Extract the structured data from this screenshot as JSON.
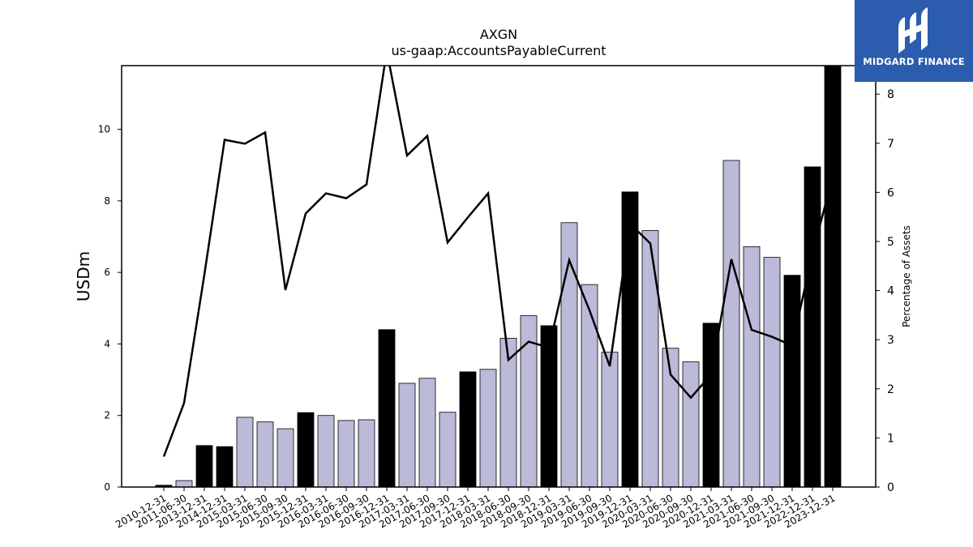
{
  "logo": {
    "name": "MIDGARD FINANCE",
    "icon": "midgard-logo-icon",
    "background": "#2b5cad"
  },
  "chart_data": {
    "type": "bar",
    "title": "AXGN",
    "subtitle": "us-gaap:AccountsPayableCurrent",
    "ylabel": "USDm",
    "y2label": "Percentage of Assets",
    "ylim": [
      0,
      11.78
    ],
    "y2lim": [
      0,
      8.58
    ],
    "yticks": [
      0,
      2,
      4,
      6,
      8,
      10
    ],
    "y2ticks": [
      0,
      1,
      2,
      3,
      4,
      5,
      6,
      7,
      8
    ],
    "grid": false,
    "legend": "none",
    "colors": {
      "annual": "#000000",
      "quarterly": "#bcbad9",
      "line": "#000000"
    },
    "categories": [
      "2010-12-31",
      "2011-06-30",
      "2013-12-31",
      "2014-12-31",
      "2015-03-31",
      "2015-06-30",
      "2015-09-30",
      "2015-12-31",
      "2016-03-31",
      "2016-06-30",
      "2016-09-30",
      "2016-12-31",
      "2017-03-31",
      "2017-06-30",
      "2017-09-30",
      "2017-12-31",
      "2018-03-31",
      "2018-06-30",
      "2018-09-30",
      "2018-12-31",
      "2019-03-31",
      "2019-06-30",
      "2019-09-30",
      "2019-12-31",
      "2020-03-31",
      "2020-06-30",
      "2020-09-30",
      "2020-12-31",
      "2021-03-31",
      "2021-06-30",
      "2021-09-30",
      "2021-12-31",
      "2022-12-31",
      "2023-12-31"
    ],
    "series": [
      {
        "kind": "bar",
        "values": [
          0.05,
          0.18,
          1.16,
          1.13,
          1.95,
          1.82,
          1.63,
          2.08,
          2.0,
          1.86,
          1.88,
          4.4,
          2.9,
          3.04,
          2.09,
          3.22,
          3.29,
          4.16,
          4.79,
          4.51,
          7.39,
          5.66,
          3.77,
          8.25,
          7.17,
          3.88,
          3.5,
          4.58,
          9.13,
          6.72,
          6.42,
          5.92,
          8.95,
          11.78
        ],
        "annual": [
          true,
          false,
          true,
          true,
          false,
          false,
          false,
          true,
          false,
          false,
          false,
          true,
          false,
          false,
          false,
          true,
          false,
          false,
          false,
          true,
          false,
          false,
          false,
          true,
          false,
          false,
          false,
          true,
          false,
          false,
          false,
          true,
          true,
          true
        ]
      },
      {
        "kind": "line",
        "axis": "right",
        "values": [
          0.62,
          1.71,
          4.32,
          7.07,
          6.99,
          7.22,
          4.01,
          5.57,
          5.98,
          5.88,
          6.16,
          8.88,
          6.75,
          7.15,
          4.98,
          5.49,
          5.98,
          2.59,
          2.96,
          2.84,
          4.62,
          3.6,
          2.46,
          5.36,
          4.96,
          2.29,
          1.82,
          2.29,
          4.64,
          3.2,
          3.06,
          2.88,
          4.76,
          6.31
        ]
      }
    ]
  }
}
